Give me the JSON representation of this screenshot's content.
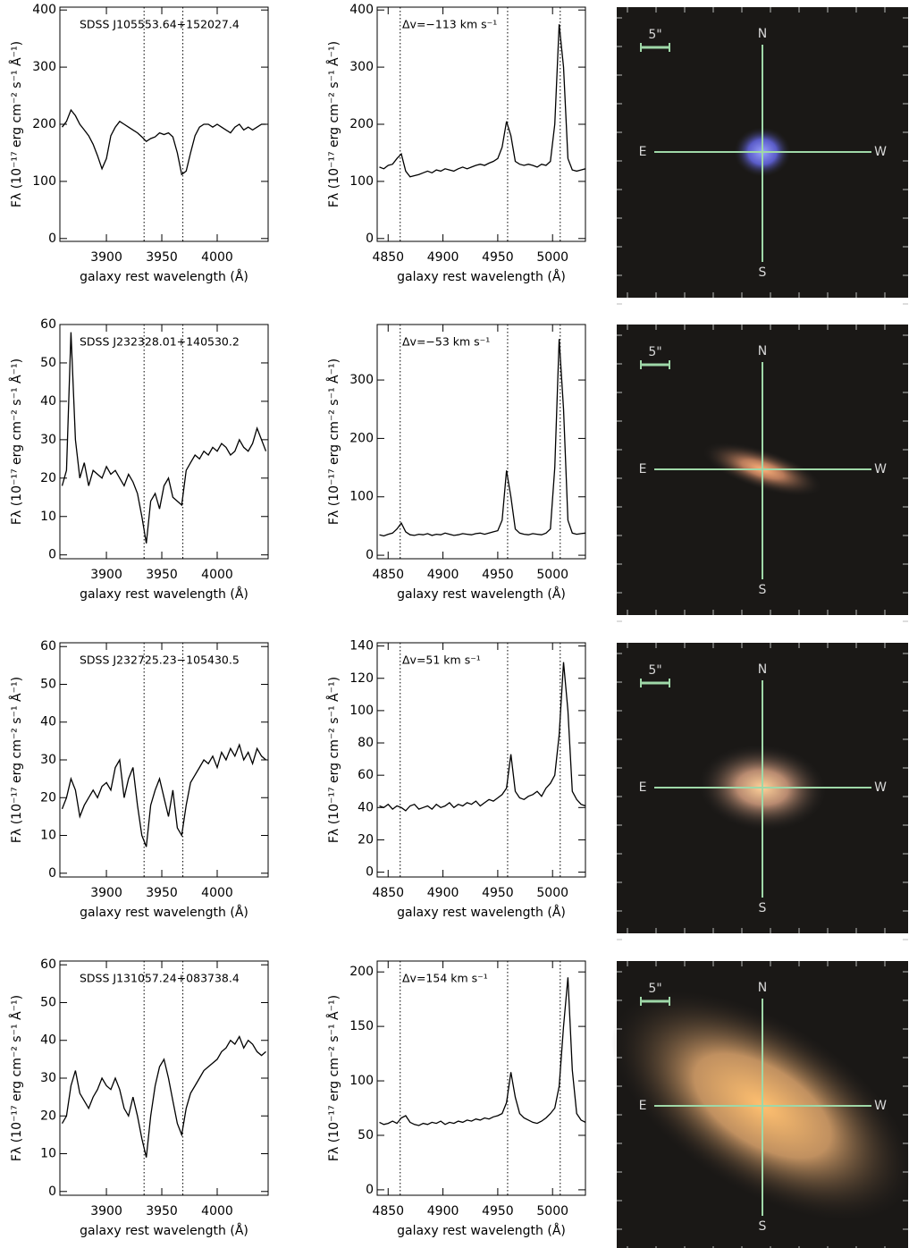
{
  "chart_data": [
    {
      "type": "line",
      "annotation": "SDSS J105553.64+152027.4",
      "xlabel": "galaxy rest wavelength (Å)",
      "ylabel": "Fλ (10⁻¹⁷ erg cm⁻² s⁻¹ Å⁻¹)",
      "color": "#000000",
      "x": [
        3860,
        3864,
        3868,
        3872,
        3876,
        3880,
        3884,
        3888,
        3892,
        3896,
        3900,
        3904,
        3908,
        3912,
        3916,
        3920,
        3924,
        3928,
        3932,
        3936,
        3940,
        3944,
        3948,
        3952,
        3956,
        3960,
        3964,
        3968,
        3972,
        3976,
        3980,
        3984,
        3988,
        3992,
        3996,
        4000,
        4004,
        4008,
        4012,
        4016,
        4020,
        4024,
        4028,
        4032,
        4036,
        4040,
        4044
      ],
      "values": [
        195,
        205,
        225,
        215,
        200,
        190,
        180,
        165,
        145,
        122,
        140,
        180,
        195,
        205,
        200,
        195,
        190,
        185,
        178,
        170,
        175,
        178,
        185,
        182,
        185,
        178,
        150,
        112,
        118,
        150,
        180,
        195,
        200,
        200,
        195,
        200,
        195,
        190,
        185,
        195,
        200,
        190,
        195,
        190,
        195,
        200,
        200
      ],
      "xlim": [
        3858,
        4046
      ],
      "ylim": [
        -5,
        405
      ],
      "xticks": [
        3900,
        3950,
        4000
      ],
      "yticks": [
        0,
        100,
        200,
        300,
        400
      ],
      "vlines": [
        3934,
        3969
      ]
    },
    {
      "type": "line",
      "annotation": "Δv=−113 km s⁻¹",
      "xlabel": "galaxy rest wavelength (Å)",
      "ylabel": "Fλ (10⁻¹⁷ erg cm⁻² s⁻¹ Å⁻¹)",
      "color": "#000000",
      "x": [
        4842,
        4846,
        4850,
        4854,
        4858,
        4862,
        4866,
        4870,
        4874,
        4878,
        4882,
        4886,
        4890,
        4894,
        4898,
        4902,
        4906,
        4910,
        4914,
        4918,
        4922,
        4926,
        4930,
        4934,
        4938,
        4942,
        4946,
        4950,
        4954,
        4958,
        4962,
        4966,
        4970,
        4974,
        4978,
        4982,
        4986,
        4990,
        4994,
        4998,
        5002,
        5006,
        5010,
        5014,
        5018,
        5022,
        5026,
        5030
      ],
      "values": [
        125,
        122,
        128,
        130,
        140,
        148,
        118,
        108,
        110,
        112,
        115,
        118,
        115,
        120,
        118,
        122,
        120,
        118,
        122,
        125,
        122,
        125,
        128,
        130,
        128,
        132,
        135,
        140,
        160,
        205,
        180,
        135,
        130,
        128,
        130,
        128,
        125,
        130,
        128,
        135,
        200,
        375,
        300,
        140,
        120,
        118,
        120,
        122
      ],
      "xlim": [
        4840,
        5030
      ],
      "ylim": [
        -5,
        405
      ],
      "xticks": [
        4850,
        4900,
        4950,
        5000
      ],
      "yticks": [
        0,
        100,
        200,
        300,
        400
      ],
      "vlines": [
        4861,
        4959,
        5007
      ]
    },
    {
      "type": "line",
      "annotation": "SDSS J232328.01+140530.2",
      "xlabel": "galaxy rest wavelength (Å)",
      "ylabel": "Fλ (10⁻¹⁷ erg cm⁻² s⁻¹ Å⁻¹)",
      "color": "#000000",
      "x": [
        3860,
        3864,
        3868,
        3872,
        3876,
        3880,
        3884,
        3888,
        3892,
        3896,
        3900,
        3904,
        3908,
        3912,
        3916,
        3920,
        3924,
        3928,
        3932,
        3936,
        3940,
        3944,
        3948,
        3952,
        3956,
        3960,
        3964,
        3968,
        3972,
        3976,
        3980,
        3984,
        3988,
        3992,
        3996,
        4000,
        4004,
        4008,
        4012,
        4016,
        4020,
        4024,
        4028,
        4032,
        4036,
        4040,
        4044
      ],
      "values": [
        18,
        22,
        58,
        30,
        20,
        24,
        18,
        22,
        21,
        20,
        23,
        21,
        22,
        20,
        18,
        21,
        19,
        16,
        10,
        3,
        14,
        16,
        12,
        18,
        20,
        15,
        14,
        13,
        22,
        24,
        26,
        25,
        27,
        26,
        28,
        27,
        29,
        28,
        26,
        27,
        30,
        28,
        27,
        29,
        33,
        30,
        27
      ],
      "xlim": [
        3858,
        4046
      ],
      "ylim": [
        -1,
        60
      ],
      "xticks": [
        3900,
        3950,
        4000
      ],
      "yticks": [
        0,
        10,
        20,
        30,
        40,
        50,
        60
      ],
      "vlines": [
        3934,
        3969
      ]
    },
    {
      "type": "line",
      "annotation": "Δv=−53 km s⁻¹",
      "xlabel": "galaxy rest wavelength (Å)",
      "ylabel": "Fλ (10⁻¹⁷ erg cm⁻² s⁻¹ Å⁻¹)",
      "color": "#000000",
      "x": [
        4842,
        4846,
        4850,
        4854,
        4858,
        4862,
        4866,
        4870,
        4874,
        4878,
        4882,
        4886,
        4890,
        4894,
        4898,
        4902,
        4906,
        4910,
        4914,
        4918,
        4922,
        4926,
        4930,
        4934,
        4938,
        4942,
        4946,
        4950,
        4954,
        4958,
        4962,
        4966,
        4970,
        4974,
        4978,
        4982,
        4986,
        4990,
        4994,
        4998,
        5002,
        5006,
        5010,
        5014,
        5018,
        5022,
        5026,
        5030
      ],
      "values": [
        35,
        33,
        36,
        38,
        45,
        55,
        40,
        35,
        34,
        36,
        35,
        37,
        34,
        36,
        35,
        38,
        36,
        34,
        35,
        37,
        36,
        35,
        37,
        38,
        36,
        38,
        40,
        42,
        60,
        145,
        100,
        45,
        38,
        36,
        35,
        37,
        36,
        35,
        38,
        45,
        150,
        370,
        250,
        60,
        38,
        36,
        37,
        38
      ],
      "xlim": [
        4840,
        5030
      ],
      "ylim": [
        -6,
        395
      ],
      "xticks": [
        4850,
        4900,
        4950,
        5000
      ],
      "yticks": [
        0,
        100,
        200,
        300
      ],
      "vlines": [
        4861,
        4959,
        5007
      ]
    },
    {
      "type": "line",
      "annotation": "SDSS J232725.23−105430.5",
      "xlabel": "galaxy rest wavelength (Å)",
      "ylabel": "Fλ (10⁻¹⁷ erg cm⁻² s⁻¹ Å⁻¹)",
      "color": "#000000",
      "x": [
        3860,
        3864,
        3868,
        3872,
        3876,
        3880,
        3884,
        3888,
        3892,
        3896,
        3900,
        3904,
        3908,
        3912,
        3916,
        3920,
        3924,
        3928,
        3932,
        3936,
        3940,
        3944,
        3948,
        3952,
        3956,
        3960,
        3964,
        3968,
        3972,
        3976,
        3980,
        3984,
        3988,
        3992,
        3996,
        4000,
        4004,
        4008,
        4012,
        4016,
        4020,
        4024,
        4028,
        4032,
        4036,
        4040,
        4044
      ],
      "values": [
        17,
        20,
        25,
        22,
        15,
        18,
        20,
        22,
        20,
        23,
        24,
        22,
        28,
        30,
        20,
        25,
        28,
        18,
        10,
        7,
        18,
        22,
        25,
        20,
        15,
        22,
        12,
        10,
        18,
        24,
        26,
        28,
        30,
        29,
        31,
        28,
        32,
        30,
        33,
        31,
        34,
        30,
        32,
        29,
        33,
        31,
        30
      ],
      "xlim": [
        3858,
        4046
      ],
      "ylim": [
        -1,
        61
      ],
      "xticks": [
        3900,
        3950,
        4000
      ],
      "yticks": [
        0,
        10,
        20,
        30,
        40,
        50,
        60
      ],
      "vlines": [
        3934,
        3969
      ]
    },
    {
      "type": "line",
      "annotation": "Δv=51 km s⁻¹",
      "xlabel": "galaxy rest wavelength (Å)",
      "ylabel": "Fλ (10⁻¹⁷ erg cm⁻² s⁻¹ Å⁻¹)",
      "color": "#000000",
      "x": [
        4842,
        4846,
        4850,
        4854,
        4858,
        4862,
        4866,
        4870,
        4874,
        4878,
        4882,
        4886,
        4890,
        4894,
        4898,
        4902,
        4906,
        4910,
        4914,
        4918,
        4922,
        4926,
        4930,
        4934,
        4938,
        4942,
        4946,
        4950,
        4954,
        4958,
        4962,
        4966,
        4970,
        4974,
        4978,
        4982,
        4986,
        4990,
        4994,
        4998,
        5002,
        5006,
        5010,
        5014,
        5018,
        5022,
        5026,
        5030
      ],
      "values": [
        41,
        40,
        42,
        39,
        41,
        40,
        38,
        41,
        42,
        39,
        40,
        41,
        39,
        42,
        40,
        41,
        43,
        40,
        42,
        41,
        43,
        42,
        44,
        41,
        43,
        45,
        44,
        46,
        48,
        52,
        73,
        50,
        46,
        45,
        47,
        48,
        50,
        47,
        52,
        55,
        60,
        85,
        130,
        100,
        50,
        45,
        42,
        41
      ],
      "xlim": [
        4840,
        5030
      ],
      "ylim": [
        -3,
        142
      ],
      "xticks": [
        4850,
        4900,
        4950,
        5000
      ],
      "yticks": [
        0,
        20,
        40,
        60,
        80,
        100,
        120,
        140
      ],
      "vlines": [
        4861,
        4959,
        5007
      ]
    },
    {
      "type": "line",
      "annotation": "SDSS J131057.24+083738.4",
      "xlabel": "galaxy rest wavelength (Å)",
      "ylabel": "Fλ (10⁻¹⁷ erg cm⁻² s⁻¹ Å⁻¹)",
      "color": "#000000",
      "x": [
        3860,
        3864,
        3868,
        3872,
        3876,
        3880,
        3884,
        3888,
        3892,
        3896,
        3900,
        3904,
        3908,
        3912,
        3916,
        3920,
        3924,
        3928,
        3932,
        3936,
        3940,
        3944,
        3948,
        3952,
        3956,
        3960,
        3964,
        3968,
        3972,
        3976,
        3980,
        3984,
        3988,
        3992,
        3996,
        4000,
        4004,
        4008,
        4012,
        4016,
        4020,
        4024,
        4028,
        4032,
        4036,
        4040,
        4044
      ],
      "values": [
        18,
        20,
        28,
        32,
        26,
        24,
        22,
        25,
        27,
        30,
        28,
        27,
        30,
        27,
        22,
        20,
        25,
        20,
        14,
        9,
        20,
        28,
        33,
        35,
        30,
        24,
        18,
        15,
        22,
        26,
        28,
        30,
        32,
        33,
        34,
        35,
        37,
        38,
        40,
        39,
        41,
        38,
        40,
        39,
        37,
        36,
        37
      ],
      "xlim": [
        3858,
        4046
      ],
      "ylim": [
        -1,
        61
      ],
      "xticks": [
        3900,
        3950,
        4000
      ],
      "yticks": [
        0,
        10,
        20,
        30,
        40,
        50,
        60
      ],
      "vlines": [
        3934,
        3969
      ]
    },
    {
      "type": "line",
      "annotation": "Δv=154 km s⁻¹",
      "xlabel": "galaxy rest wavelength (Å)",
      "ylabel": "Fλ (10⁻¹⁷ erg cm⁻² s⁻¹ Å⁻¹)",
      "color": "#000000",
      "x": [
        4842,
        4846,
        4850,
        4854,
        4858,
        4862,
        4866,
        4870,
        4874,
        4878,
        4882,
        4886,
        4890,
        4894,
        4898,
        4902,
        4906,
        4910,
        4914,
        4918,
        4922,
        4926,
        4930,
        4934,
        4938,
        4942,
        4946,
        4950,
        4954,
        4958,
        4962,
        4966,
        4970,
        4974,
        4978,
        4982,
        4986,
        4990,
        4994,
        4998,
        5002,
        5006,
        5010,
        5014,
        5018,
        5022,
        5026,
        5030
      ],
      "values": [
        62,
        60,
        61,
        63,
        61,
        66,
        68,
        62,
        60,
        59,
        61,
        60,
        62,
        61,
        63,
        60,
        62,
        61,
        63,
        62,
        64,
        63,
        65,
        64,
        66,
        65,
        67,
        68,
        70,
        80,
        108,
        85,
        70,
        66,
        64,
        62,
        61,
        63,
        66,
        70,
        75,
        95,
        150,
        195,
        110,
        70,
        64,
        62
      ],
      "xlim": [
        4840,
        5030
      ],
      "ylim": [
        -5,
        210
      ],
      "xticks": [
        4850,
        4900,
        4950,
        5000
      ],
      "yticks": [
        0,
        50,
        100,
        150,
        200
      ],
      "vlines": [
        4861,
        4959,
        5007
      ]
    }
  ],
  "images": [
    {
      "scale": "5\"",
      "north": "N",
      "east": "E",
      "west": "W",
      "south": "S"
    },
    {
      "scale": "5\"",
      "north": "N",
      "east": "E",
      "west": "W",
      "south": "S"
    },
    {
      "scale": "5\"",
      "north": "N",
      "east": "E",
      "west": "W",
      "south": "S"
    },
    {
      "scale": "5\"",
      "north": "N",
      "east": "E",
      "west": "W",
      "south": "S"
    }
  ]
}
